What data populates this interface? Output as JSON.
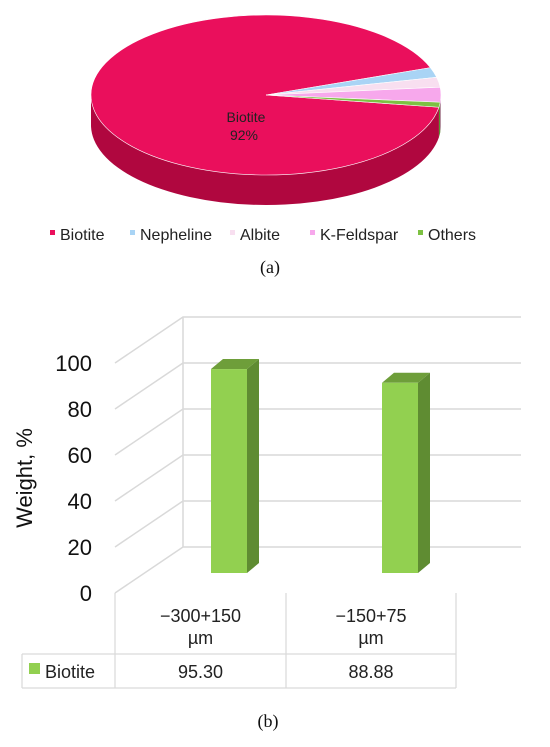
{
  "chart_data": [
    {
      "type": "pie",
      "panel_label": "(a)",
      "slices": [
        {
          "label": "Biotite",
          "value": 92,
          "color": "#ea0f5c",
          "side_color": "#b0073f"
        },
        {
          "label": "Nepheline",
          "value": 2,
          "color": "#a9d4f5",
          "side_color": "#7fa9c9"
        },
        {
          "label": "Albite",
          "value": 2,
          "color": "#f8dff0",
          "side_color": "#d8bcd0"
        },
        {
          "label": "K-Feldspar",
          "value": 3,
          "color": "#f7a8ec",
          "side_color": "#d27fc6"
        },
        {
          "label": "Others",
          "value": 1,
          "color": "#7dc142",
          "side_color": "#5a9030"
        }
      ],
      "data_label": {
        "name": "Biotite",
        "value": "92%"
      },
      "legend": {
        "placement": "bottom",
        "entries": [
          "Biotite",
          "Nepheline",
          "Albite",
          "K-Feldspar",
          "Others"
        ]
      }
    },
    {
      "type": "bar",
      "panel_label": "(b)",
      "categories": [
        "−300+150 µm",
        "−150+75 µm"
      ],
      "category_lines": [
        [
          "−300+150",
          "µm"
        ],
        [
          "−150+75",
          "µm"
        ]
      ],
      "series": [
        {
          "name": "Biotite",
          "values": [
            95.3,
            88.88
          ],
          "value_labels": [
            "95.30",
            "88.88"
          ],
          "color": "#92d050",
          "side_color": "#5f8c32",
          "top_color": "#6e9e3a"
        }
      ],
      "ylabel": "Weight, %",
      "ylim": [
        0,
        100
      ],
      "yticks": [
        "0",
        "20",
        "40",
        "60",
        "80",
        "100"
      ],
      "grid": true,
      "data_table": true
    }
  ]
}
